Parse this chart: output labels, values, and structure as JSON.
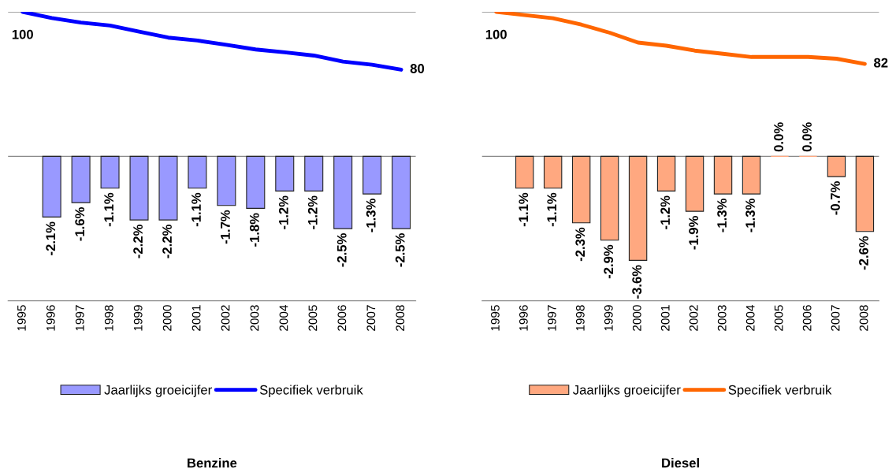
{
  "chart_data": [
    {
      "type": "bar",
      "title": "Benzine",
      "categories": [
        "1995",
        "1996",
        "1997",
        "1998",
        "1999",
        "2000",
        "2001",
        "2002",
        "2003",
        "2004",
        "2005",
        "2006",
        "2007",
        "2008"
      ],
      "series": [
        {
          "name": "Jaarlijks groeicijfer",
          "color": "#9999ff",
          "values": [
            null,
            -2.1,
            -1.6,
            -1.1,
            -2.2,
            -2.2,
            -1.1,
            -1.7,
            -1.8,
            -1.2,
            -1.2,
            -2.5,
            -1.3,
            -2.5
          ],
          "value_labels": [
            null,
            "-2.1%",
            "-1.6%",
            "-1.1%",
            "-2.2%",
            "-2.2%",
            "-1.1%",
            "-1.7%",
            "-1.8%",
            "-1.2%",
            "-1.2%",
            "-2.5%",
            "-1.3%",
            "-2.5%"
          ]
        },
        {
          "name": "Specifiek verbruik",
          "type": "line",
          "axis": "y2",
          "color": "#0000ff",
          "values": [
            100,
            97.9,
            96.3,
            95.3,
            93.2,
            91.1,
            90.1,
            88.6,
            87.0,
            86.0,
            84.9,
            82.8,
            81.7,
            80
          ],
          "value_labels": [
            "100",
            null,
            null,
            null,
            null,
            null,
            null,
            null,
            null,
            null,
            null,
            null,
            null,
            "80"
          ]
        }
      ],
      "ylim": [
        -5,
        5
      ],
      "yticks": [
        {
          "value": -5,
          "label": null
        },
        {
          "value": 0,
          "label": null
        },
        {
          "value": 5,
          "label": null
        }
      ],
      "y2lim": [
        0,
        100
      ],
      "grid": "y",
      "legend": "bottom",
      "tick_labels": "x"
    },
    {
      "type": "bar",
      "title": "Diesel",
      "categories": [
        "1995",
        "1996",
        "1997",
        "1998",
        "1999",
        "2000",
        "2001",
        "2002",
        "2003",
        "2004",
        "2005",
        "2006",
        "2007",
        "2008"
      ],
      "series": [
        {
          "name": "Jaarlijks groeicijfer",
          "color": "#ffa880",
          "values": [
            null,
            -1.1,
            -1.1,
            -2.3,
            -2.9,
            -3.6,
            -1.2,
            -1.9,
            -1.3,
            -1.3,
            0.0,
            0.0,
            -0.7,
            -2.6
          ],
          "value_labels": [
            null,
            "-1.1%",
            "-1.1%",
            "-2.3%",
            "-2.9%",
            "-3.6%",
            "-1.2%",
            "-1.9%",
            "-1.3%",
            "-1.3%",
            "0.0%",
            "0.0%",
            "-0.7%",
            "-2.6%"
          ]
        },
        {
          "name": "Specifiek verbruik",
          "type": "line",
          "axis": "y2",
          "color": "#ff6600",
          "values": [
            100,
            98.9,
            97.8,
            95.6,
            92.8,
            89.4,
            88.3,
            86.6,
            85.5,
            84.4,
            84.4,
            84.4,
            83.8,
            82
          ],
          "value_labels": [
            "100",
            null,
            null,
            null,
            null,
            null,
            null,
            null,
            null,
            null,
            null,
            null,
            null,
            "82"
          ]
        }
      ],
      "ylim": [
        -5,
        5
      ],
      "yticks": [
        {
          "value": -5,
          "label": null
        },
        {
          "value": 0,
          "label": null
        },
        {
          "value": 5,
          "label": null
        }
      ],
      "y2lim": [
        0,
        100
      ],
      "grid": "y",
      "legend": "bottom",
      "tick_labels": "x"
    }
  ]
}
